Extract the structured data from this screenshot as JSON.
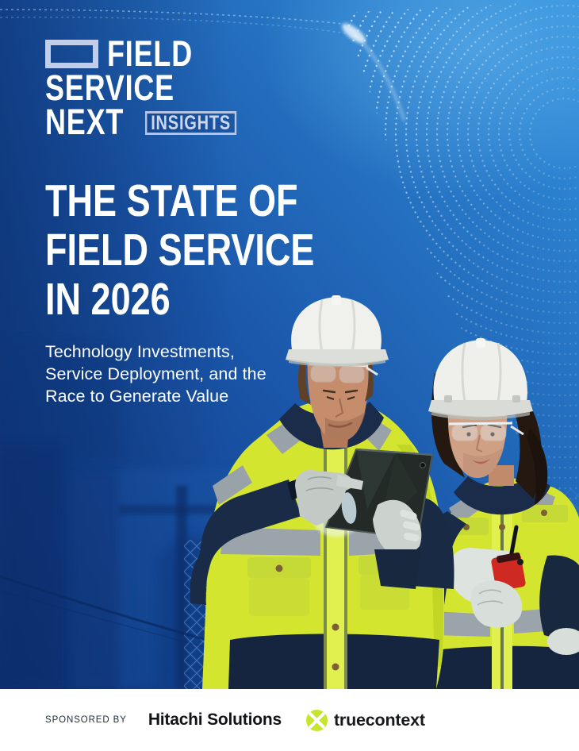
{
  "logo": {
    "word1": "FIELD",
    "word2": "SERVICE",
    "word3": "NEXT",
    "badge": "INSIGHTS"
  },
  "title": {
    "lines": [
      "THE STATE OF",
      "FIELD SERVICE",
      "IN 2026"
    ]
  },
  "subtitle": {
    "lines": [
      "Technology Investments,",
      "Service Deployment, and the",
      "Race to Generate Value"
    ]
  },
  "footer": {
    "sponsored_label": "SPONSORED BY",
    "sponsor_1": "Hitachi Solutions",
    "sponsor_2": "truecontext"
  },
  "photo": {
    "alt": "Two field service technicians in white hard hats, safety glasses and hi-vis yellow jackets review a tablet; the woman holds a red two-way radio, against a blue industrial background with a dotted data wave."
  },
  "colors": {
    "deep_blue": "#0e3580",
    "accent_blue": "#2e8ad6",
    "hivis_yellow": "#d4e52f",
    "navy_clothing": "#1a2b47",
    "truecontext_green": "#c8e52d",
    "footer_bg": "#ffffff"
  }
}
